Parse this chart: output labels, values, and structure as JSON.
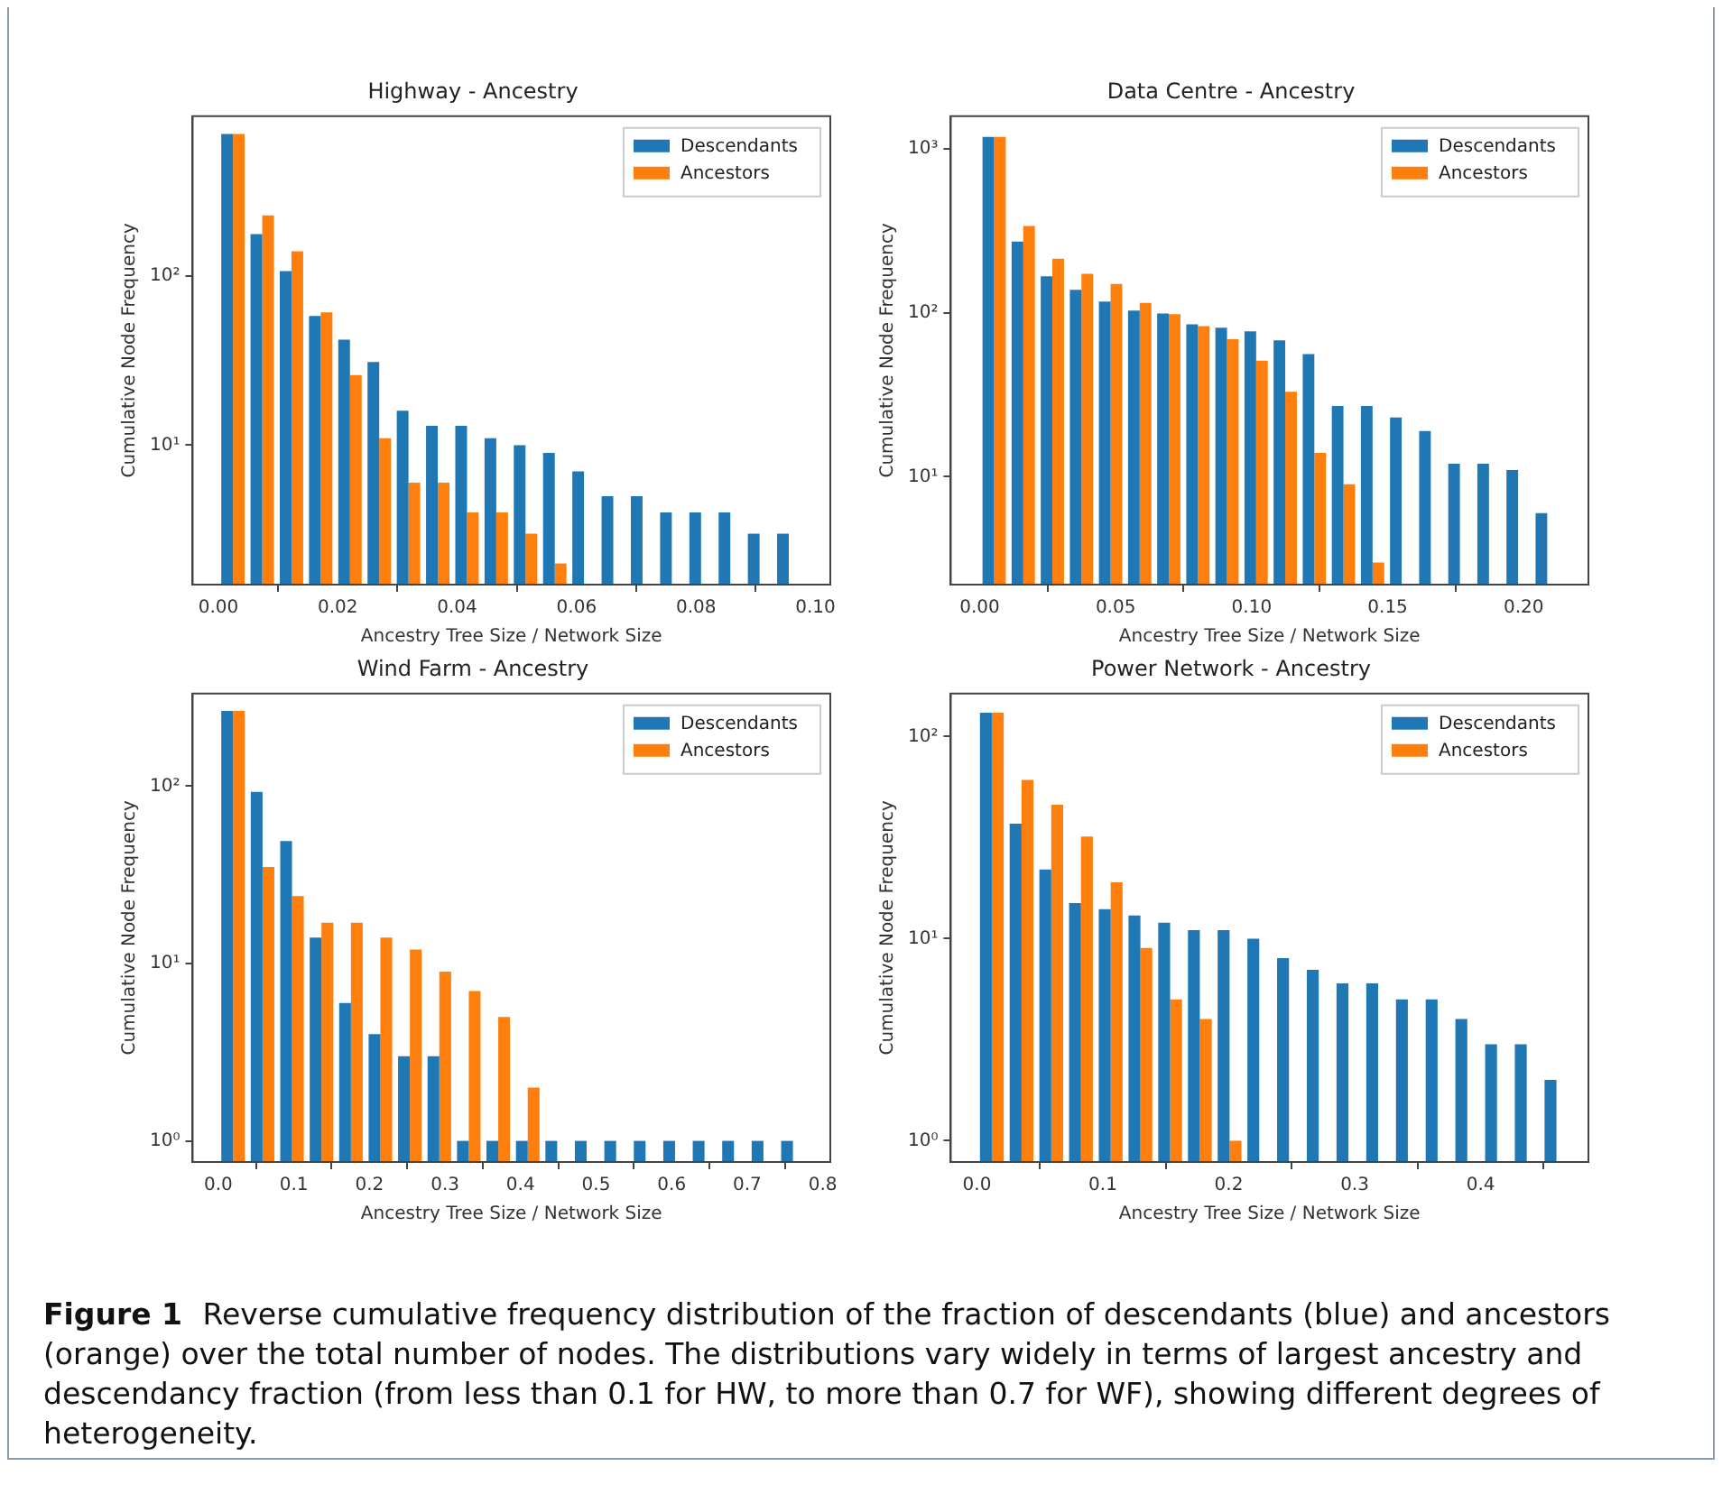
{
  "chart_data": [
    {
      "type": "histogram",
      "title": "Highway - Ancestry",
      "xlabel": "Ancestry Tree Size / Network Size",
      "ylabel": "Cumulative Node Frequency",
      "log": "y",
      "legend": "top right",
      "grid": false,
      "bins": [
        0,
        0.0049,
        0.0098,
        0.0147,
        0.0196,
        0.0245,
        0.0294,
        0.0343,
        0.0392,
        0.0441,
        0.049,
        0.0539,
        0.0588,
        0.0637,
        0.0686,
        0.0735,
        0.0784,
        0.0833,
        0.0882,
        0.0931,
        0.098
      ],
      "xlim": [
        -0.0043,
        0.1025
      ],
      "xticks": [
        {
          "value": 0,
          "label": "0.00"
        },
        {
          "value": 0.02,
          "label": "0.02"
        },
        {
          "value": 0.04,
          "label": "0.04"
        },
        {
          "value": 0.06,
          "label": "0.06"
        },
        {
          "value": 0.08,
          "label": "0.08"
        },
        {
          "value": 0.1,
          "label": "0.10"
        }
      ],
      "ylim": [
        1.5,
        880
      ],
      "yticks": [
        {
          "value": 10,
          "label": "10¹"
        },
        {
          "value": 100,
          "label": "10²"
        }
      ],
      "series": [
        {
          "name": "Descendants",
          "color": "#1f77b4",
          "values": [
            690,
            177,
            107,
            58,
            42,
            31,
            16,
            13,
            13,
            11,
            10,
            9,
            7,
            5,
            5,
            4,
            4,
            4,
            3,
            3
          ]
        },
        {
          "name": "Ancestors",
          "color": "#ff7f0e",
          "values": [
            690,
            228,
            140,
            61,
            26,
            11,
            6,
            6,
            4,
            4,
            3,
            2,
            null,
            null,
            null,
            null,
            null,
            null,
            null,
            null
          ]
        }
      ]
    },
    {
      "type": "histogram",
      "title": "Data Centre - Ancestry",
      "xlabel": "Ancestry Tree Size / Network Size",
      "ylabel": "Cumulative Node Frequency",
      "log": "y",
      "legend": "top right",
      "grid": false,
      "bins": [
        0,
        0.0107,
        0.0214,
        0.0321,
        0.0428,
        0.0535,
        0.0642,
        0.0749,
        0.0856,
        0.0963,
        0.107,
        0.1177,
        0.1284,
        0.1391,
        0.1498,
        0.1605,
        0.1712,
        0.1819,
        0.1926,
        0.2033,
        0.214
      ],
      "xlim": [
        -0.0106,
        0.2238
      ],
      "xticks": [
        {
          "value": 0,
          "label": "0.00"
        },
        {
          "value": 0.05,
          "label": "0.05"
        },
        {
          "value": 0.1,
          "label": "0.10"
        },
        {
          "value": 0.15,
          "label": "0.15"
        },
        {
          "value": 0.2,
          "label": "0.20"
        }
      ],
      "ylim": [
        2.2,
        1580
      ],
      "yticks": [
        {
          "value": 10,
          "label": "10¹"
        },
        {
          "value": 100,
          "label": "10²"
        },
        {
          "value": 1000,
          "label": "10³"
        }
      ],
      "series": [
        {
          "name": "Descendants",
          "color": "#1f77b4",
          "values": [
            1180,
            272,
            167,
            138,
            117,
            103,
            99,
            85,
            81,
            77,
            68,
            56,
            27,
            27,
            23,
            19,
            12,
            12,
            11,
            6
          ]
        },
        {
          "name": "Ancestors",
          "color": "#ff7f0e",
          "values": [
            1180,
            338,
            214,
            173,
            150,
            115,
            98,
            83,
            69,
            51,
            33,
            14,
            9,
            3,
            null,
            null,
            null,
            null,
            null,
            null
          ]
        }
      ]
    },
    {
      "type": "histogram",
      "title": "Wind Farm - Ancestry",
      "xlabel": "Ancestry Tree Size / Network Size",
      "ylabel": "Cumulative Node Frequency",
      "log": "y",
      "legend": "top right",
      "grid": false,
      "bins": [
        0,
        0.039,
        0.078,
        0.117,
        0.156,
        0.195,
        0.234,
        0.273,
        0.312,
        0.351,
        0.39,
        0.429,
        0.468,
        0.507,
        0.546,
        0.585,
        0.624,
        0.663,
        0.702,
        0.741,
        0.78
      ],
      "xlim": [
        -0.034,
        0.81
      ],
      "xticks": [
        {
          "value": 0,
          "label": "0.0"
        },
        0.1,
        0.2,
        0.3,
        0.4,
        0.5,
        0.6,
        0.7,
        0.8
      ],
      "ylim": [
        0.76,
        333
      ],
      "yticks": [
        {
          "value": 1,
          "label": "10⁰"
        },
        {
          "value": 10,
          "label": "10¹"
        },
        {
          "value": 100,
          "label": "10²"
        }
      ],
      "series": [
        {
          "name": "Descendants",
          "color": "#1f77b4",
          "values": [
            266,
            93,
            49,
            14,
            6,
            4,
            3,
            3,
            1,
            1,
            1,
            1,
            1,
            1,
            1,
            1,
            1,
            1,
            1,
            1
          ]
        },
        {
          "name": "Ancestors",
          "color": "#ff7f0e",
          "values": [
            266,
            35,
            24,
            17,
            17,
            14,
            12,
            9,
            7,
            5,
            2,
            null,
            null,
            null,
            null,
            null,
            null,
            null,
            null,
            null
          ]
        }
      ]
    },
    {
      "type": "histogram",
      "title": "Power Network - Ancestry",
      "xlabel": "Ancestry Tree Size / Network Size",
      "ylabel": "Cumulative Node Frequency",
      "log": "y",
      "legend": "top right",
      "grid": false,
      "bins": [
        0,
        0.0236,
        0.0472,
        0.0708,
        0.0944,
        0.118,
        0.1416,
        0.1652,
        0.1888,
        0.2124,
        0.236,
        0.2596,
        0.2832,
        0.3068,
        0.3304,
        0.354,
        0.3776,
        0.4012,
        0.4248,
        0.4484,
        0.472
      ],
      "xlim": [
        -0.0208,
        0.4856
      ],
      "xticks": [
        {
          "value": 0,
          "label": "0.0"
        },
        0.1,
        0.2,
        0.3,
        0.4
      ],
      "ylim": [
        0.785,
        163
      ],
      "yticks": [
        {
          "value": 1,
          "label": "10⁰"
        },
        {
          "value": 10,
          "label": "10¹"
        },
        {
          "value": 100,
          "label": "10²"
        }
      ],
      "series": [
        {
          "name": "Descendants",
          "color": "#1f77b4",
          "values": [
            131,
            37,
            22,
            15,
            14,
            13,
            12,
            11,
            11,
            10,
            8,
            7,
            6,
            6,
            5,
            5,
            4,
            3,
            3,
            2
          ]
        },
        {
          "name": "Ancestors",
          "color": "#ff7f0e",
          "values": [
            131,
            61,
            46,
            32,
            19,
            9,
            5,
            4,
            1,
            null,
            null,
            null,
            null,
            null,
            null,
            null,
            null,
            null,
            null,
            null
          ]
        }
      ],
      "annotations": [
        "Figure 1",
        "Reverse cumulative frequency distribution of the fraction of descendants (blue) and ancestors (orange) over the total number of nodes. The distributions vary widely in terms of largest ancestry and descendancy fraction (from less than 0.1 for HW, to more than 0.7 for WF), showing different degrees of heterogeneity."
      ]
    }
  ]
}
